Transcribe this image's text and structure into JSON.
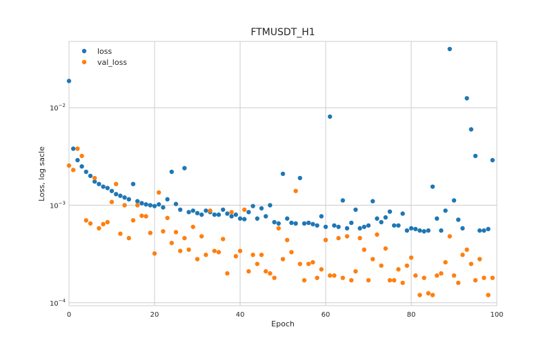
{
  "chart_data": {
    "type": "scatter",
    "title": "FTMUSDT_H1",
    "xlabel": "Epoch",
    "ylabel": "Loss, log sacle",
    "xlim": [
      0,
      100
    ],
    "ylim_log10": [
      -4.03,
      -1.32
    ],
    "yscale": "log",
    "grid": true,
    "legend_position": "top-left",
    "xticks": [
      0,
      20,
      40,
      60,
      80,
      100
    ],
    "xtick_labels": [
      "0",
      "20",
      "40",
      "60",
      "80",
      "100"
    ],
    "yticks": [
      0.0001,
      0.001,
      0.01
    ],
    "ytick_labels": [
      {
        "base": "10",
        "exp": "−4"
      },
      {
        "base": "10",
        "exp": "−3"
      },
      {
        "base": "10",
        "exp": "−2"
      }
    ],
    "series": [
      {
        "name": "loss",
        "color": "#1f77b4",
        "x": [
          0,
          1,
          2,
          3,
          4,
          5,
          6,
          7,
          8,
          9,
          10,
          11,
          12,
          13,
          14,
          15,
          16,
          17,
          18,
          19,
          20,
          21,
          22,
          23,
          24,
          25,
          26,
          27,
          28,
          29,
          30,
          31,
          32,
          33,
          34,
          35,
          36,
          37,
          38,
          39,
          40,
          41,
          42,
          43,
          44,
          45,
          46,
          47,
          48,
          49,
          50,
          51,
          52,
          53,
          54,
          55,
          56,
          57,
          58,
          59,
          60,
          61,
          62,
          63,
          64,
          65,
          66,
          67,
          68,
          69,
          70,
          71,
          72,
          73,
          74,
          75,
          76,
          77,
          78,
          79,
          80,
          81,
          82,
          83,
          84,
          85,
          86,
          87,
          88,
          89,
          90,
          91,
          92,
          93,
          94,
          95,
          96,
          97,
          98,
          99
        ],
        "y": [
          0.0188,
          0.0038,
          0.0029,
          0.0025,
          0.0022,
          0.002,
          0.00175,
          0.00165,
          0.00155,
          0.0015,
          0.0014,
          0.0013,
          0.00125,
          0.0012,
          0.00115,
          0.00165,
          0.0011,
          0.00105,
          0.00102,
          0.001,
          0.00098,
          0.00102,
          0.00095,
          0.00115,
          0.0022,
          0.00103,
          0.0009,
          0.0024,
          0.00085,
          0.00088,
          0.00083,
          0.0008,
          0.00088,
          0.00085,
          0.0008,
          0.0008,
          0.0009,
          0.00082,
          0.00077,
          0.0008,
          0.00073,
          0.00072,
          0.00085,
          0.00098,
          0.00073,
          0.00093,
          0.00077,
          0.001,
          0.00067,
          0.00065,
          0.0021,
          0.00073,
          0.00066,
          0.00065,
          0.0019,
          0.00065,
          0.00066,
          0.00064,
          0.00062,
          0.00077,
          0.0006,
          0.0081,
          0.00062,
          0.0006,
          0.00112,
          0.00058,
          0.00066,
          0.0009,
          0.00058,
          0.0006,
          0.00062,
          0.0011,
          0.00073,
          0.00067,
          0.00075,
          0.00086,
          0.00062,
          0.00062,
          0.00082,
          0.00055,
          0.00058,
          0.00057,
          0.00055,
          0.00054,
          0.00055,
          0.00155,
          0.00073,
          0.00055,
          0.00088,
          0.04,
          0.00112,
          0.00071,
          0.00058,
          0.0125,
          0.006,
          0.0032,
          0.00055,
          0.00055,
          0.00057,
          0.0029
        ]
      },
      {
        "name": "val_loss",
        "color": "#ff7f0e",
        "x": [
          0,
          1,
          2,
          3,
          4,
          5,
          6,
          7,
          8,
          9,
          10,
          11,
          12,
          13,
          14,
          15,
          16,
          17,
          18,
          19,
          20,
          21,
          22,
          23,
          24,
          25,
          26,
          27,
          28,
          29,
          30,
          31,
          32,
          33,
          34,
          35,
          36,
          37,
          38,
          39,
          40,
          41,
          42,
          43,
          44,
          45,
          46,
          47,
          48,
          49,
          50,
          51,
          52,
          53,
          54,
          55,
          56,
          57,
          58,
          59,
          60,
          61,
          62,
          63,
          64,
          65,
          66,
          67,
          68,
          69,
          70,
          71,
          72,
          73,
          74,
          75,
          76,
          77,
          78,
          79,
          80,
          81,
          82,
          83,
          84,
          85,
          86,
          87,
          88,
          89,
          90,
          91,
          92,
          93,
          94,
          95,
          96,
          97,
          98,
          99
        ],
        "y": [
          0.00255,
          0.0023,
          0.0038,
          0.0032,
          0.0007,
          0.00065,
          0.0019,
          0.00058,
          0.00064,
          0.00067,
          0.00108,
          0.00165,
          0.00051,
          0.001,
          0.00046,
          0.0007,
          0.001,
          0.00078,
          0.00077,
          0.00052,
          0.00032,
          0.00135,
          0.00054,
          0.00074,
          0.00041,
          0.00053,
          0.00034,
          0.00046,
          0.00035,
          0.0006,
          0.00028,
          0.00048,
          0.00031,
          0.00088,
          0.00034,
          0.00033,
          0.00045,
          0.0002,
          0.00085,
          0.0003,
          0.00034,
          0.0009,
          0.00021,
          0.00031,
          0.00025,
          0.00031,
          0.00021,
          0.0002,
          0.00018,
          0.00058,
          0.00028,
          0.00044,
          0.00033,
          0.0014,
          0.00025,
          0.00017,
          0.00025,
          0.00026,
          0.00018,
          0.00022,
          0.00044,
          0.00019,
          0.00019,
          0.00046,
          0.00018,
          0.00048,
          0.00017,
          0.00021,
          0.00046,
          0.00035,
          0.00017,
          0.00028,
          0.0005,
          0.00024,
          0.00036,
          0.00017,
          0.00017,
          0.00022,
          0.00016,
          0.00024,
          0.00029,
          0.00019,
          0.00012,
          0.00018,
          0.000125,
          0.00012,
          0.00019,
          0.0002,
          0.00026,
          0.00048,
          0.00019,
          0.00016,
          0.00031,
          0.00035,
          0.00025,
          0.00017,
          0.00028,
          0.00018,
          0.00012,
          0.00018
        ]
      }
    ]
  }
}
